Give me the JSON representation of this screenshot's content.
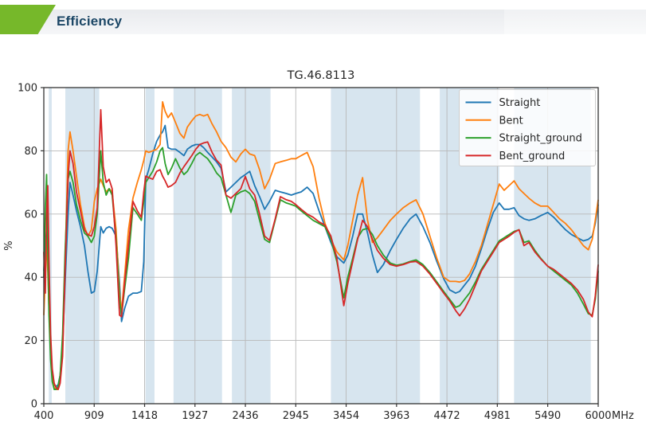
{
  "header": {
    "title": "Efficiency"
  },
  "chart_data": {
    "type": "line",
    "title": "TG.46.8113",
    "ylabel": "%",
    "x_unit_label": "MHz",
    "xlim": [
      400,
      6000
    ],
    "ylim": [
      0,
      100
    ],
    "x_ticks": [
      400,
      909,
      1418,
      1927,
      2436,
      2945,
      3454,
      3963,
      4472,
      4981,
      5490,
      6000
    ],
    "y_ticks": [
      0,
      20,
      40,
      60,
      80,
      100
    ],
    "grid": true,
    "legend_position": "upper right",
    "band_color": "#d7e5ef",
    "grid_color": "#b8b8b8",
    "spine_color": "#333333",
    "highlight_bands_mhz": [
      [
        450,
        480
      ],
      [
        617,
        960
      ],
      [
        1427,
        1518
      ],
      [
        1710,
        2200
      ],
      [
        2300,
        2690
      ],
      [
        3300,
        4200
      ],
      [
        4400,
        5000
      ],
      [
        5150,
        5925
      ]
    ],
    "x": [
      400,
      415,
      428,
      440,
      452,
      468,
      485,
      505,
      525,
      545,
      565,
      590,
      615,
      645,
      665,
      695,
      730,
      770,
      810,
      845,
      880,
      910,
      940,
      975,
      1000,
      1030,
      1060,
      1090,
      1130,
      1165,
      1185,
      1215,
      1255,
      1300,
      1345,
      1385,
      1410,
      1430,
      1460,
      1500,
      1540,
      1575,
      1600,
      1625,
      1655,
      1690,
      1730,
      1775,
      1815,
      1850,
      1895,
      1935,
      1975,
      2015,
      2055,
      2100,
      2145,
      2190,
      2240,
      2290,
      2340,
      2390,
      2436,
      2480,
      2530,
      2580,
      2630,
      2680,
      2737,
      2790,
      2850,
      2900,
      2945,
      3000,
      3060,
      3120,
      3180,
      3240,
      3300,
      3360,
      3430,
      3470,
      3520,
      3570,
      3620,
      3670,
      3720,
      3770,
      3830,
      3900,
      3963,
      4030,
      4100,
      4160,
      4230,
      4300,
      4370,
      4440,
      4500,
      4560,
      4600,
      4650,
      4700,
      4760,
      4820,
      4880,
      4940,
      5000,
      5050,
      5100,
      5150,
      5200,
      5250,
      5300,
      5360,
      5420,
      5490,
      5550,
      5610,
      5670,
      5730,
      5790,
      5850,
      5900,
      5940,
      5970,
      6000
    ],
    "series": [
      {
        "name": "Straight",
        "color": "#1f77b4",
        "values": [
          42,
          50,
          55,
          45,
          32,
          18,
          9,
          6,
          5.5,
          6,
          9,
          18,
          38,
          60,
          70,
          66,
          61,
          56,
          50,
          42,
          35,
          35.5,
          42,
          56,
          54,
          55.5,
          56,
          55.5,
          53,
          38,
          26,
          30,
          34,
          35,
          35,
          35.5,
          45,
          71,
          74,
          79,
          83,
          85,
          86,
          88,
          81,
          80.5,
          80.5,
          79.5,
          78.5,
          80.5,
          81.5,
          82,
          82,
          81,
          79.5,
          78,
          76.5,
          74.5,
          67,
          68.5,
          70,
          71.5,
          72.5,
          73.5,
          69,
          65.5,
          61.5,
          64,
          67.5,
          67,
          66.5,
          66,
          66.5,
          67,
          68.5,
          66.5,
          61,
          56,
          51,
          46.5,
          44.5,
          47,
          53,
          60,
          60,
          54,
          47,
          41.5,
          44,
          48.5,
          52,
          55.5,
          58.5,
          60,
          56,
          51,
          45,
          39.5,
          36,
          35,
          35.5,
          37.5,
          39.5,
          43.5,
          49,
          55,
          60.5,
          63.5,
          61.5,
          61.5,
          62,
          59.5,
          58.5,
          58,
          58.5,
          59.5,
          60.5,
          59,
          57,
          55,
          53.5,
          52.5,
          51.5,
          52,
          53,
          57,
          63
        ]
      },
      {
        "name": "Bent",
        "color": "#ff7f0e",
        "values": [
          28,
          40,
          52,
          42,
          30,
          16,
          8,
          5,
          4.5,
          4.5,
          8,
          20,
          45,
          80,
          86,
          80,
          72,
          63,
          56,
          53,
          55,
          64,
          68,
          71,
          69,
          67,
          68,
          67,
          55,
          35,
          29,
          40,
          55,
          65,
          70,
          74,
          77,
          80,
          79.5,
          80,
          80.5,
          82,
          95.5,
          92.5,
          90.5,
          92,
          89,
          85.5,
          84,
          87.5,
          89.5,
          91,
          91.5,
          91,
          91.5,
          88.5,
          86,
          83,
          81,
          78,
          76.5,
          79,
          80.5,
          79,
          78.5,
          74,
          68,
          71,
          76,
          76.5,
          77,
          77.5,
          77.5,
          78.5,
          79.5,
          75,
          65,
          57,
          52,
          48,
          45.5,
          50,
          58,
          66,
          71.5,
          58,
          51,
          52.5,
          55,
          58,
          60,
          62,
          63.5,
          64.5,
          60,
          53,
          46,
          40,
          38.7,
          38.7,
          38.5,
          39,
          41,
          45,
          50,
          56.5,
          63,
          69.5,
          67.5,
          69,
          70.5,
          68,
          66.5,
          65,
          63.5,
          62.5,
          62.5,
          60.5,
          58.5,
          57,
          55,
          52.5,
          50,
          48.7,
          52,
          58,
          64.5
        ]
      },
      {
        "name": "Straight_ground",
        "color": "#2ca02c",
        "values": [
          40,
          62,
          72.5,
          48,
          28,
          14,
          7,
          4.5,
          4.5,
          5.5,
          9,
          22,
          48,
          71,
          73.5,
          70,
          63,
          58,
          54,
          53,
          51,
          53,
          60,
          80,
          70,
          66,
          68,
          66,
          52,
          33,
          28,
          36,
          46,
          62,
          60,
          58,
          64,
          70,
          71.5,
          73.5,
          76.5,
          80,
          81,
          76,
          72.5,
          74.5,
          77.5,
          74.5,
          72.5,
          73.5,
          76,
          78.5,
          79.5,
          78.5,
          77.5,
          75.5,
          73,
          71.5,
          66,
          60.5,
          66,
          67,
          67.5,
          66.5,
          64,
          58,
          52,
          51,
          58,
          64.5,
          63.5,
          63,
          62.5,
          61,
          59.5,
          58,
          57,
          56,
          52,
          45,
          33.5,
          40,
          46,
          52.5,
          55,
          55.5,
          53.5,
          50,
          47,
          44.5,
          43.8,
          44.2,
          45,
          45.5,
          44,
          41.5,
          38.5,
          35.5,
          33,
          30.5,
          31,
          33,
          35,
          38.5,
          42.5,
          45.5,
          48.5,
          51.5,
          52.5,
          53.5,
          54.5,
          55,
          51,
          51.5,
          48.5,
          46,
          43.5,
          42,
          40.5,
          39,
          37.5,
          35,
          31.5,
          28.5,
          28,
          33,
          42
        ]
      },
      {
        "name": "Bent_ground",
        "color": "#d62728",
        "values": [
          48,
          35,
          60,
          69,
          45,
          22,
          11,
          6.5,
          5,
          4.5,
          6.5,
          15,
          42,
          72,
          80,
          76,
          67,
          61,
          55,
          53.5,
          53,
          56,
          62,
          93,
          75,
          70,
          71,
          68,
          50,
          28,
          27.5,
          38,
          50,
          64,
          61,
          59,
          67,
          72,
          71.5,
          71,
          73.5,
          74,
          72,
          70.5,
          68.5,
          69,
          70,
          73,
          75,
          76.5,
          78.5,
          80.5,
          82,
          82.5,
          82.8,
          79.5,
          77,
          75.5,
          66,
          65,
          66.5,
          68,
          71.9,
          68,
          66,
          60,
          53,
          51.7,
          58.5,
          65.5,
          64.5,
          64,
          63,
          61.5,
          60,
          59,
          57.5,
          56.5,
          53,
          46,
          31,
          38,
          45,
          52,
          58,
          56,
          52,
          48.5,
          46,
          44,
          43.5,
          44,
          44.8,
          45,
          43.5,
          41,
          38,
          35,
          32.5,
          29.5,
          27.8,
          30,
          33,
          37.5,
          42,
          45,
          48,
          51,
          52,
          53,
          54.2,
          55,
          50,
          51,
          48,
          45.8,
          43.5,
          42.5,
          41,
          39.5,
          38,
          36,
          33,
          29,
          27.5,
          34,
          44
        ]
      }
    ]
  }
}
